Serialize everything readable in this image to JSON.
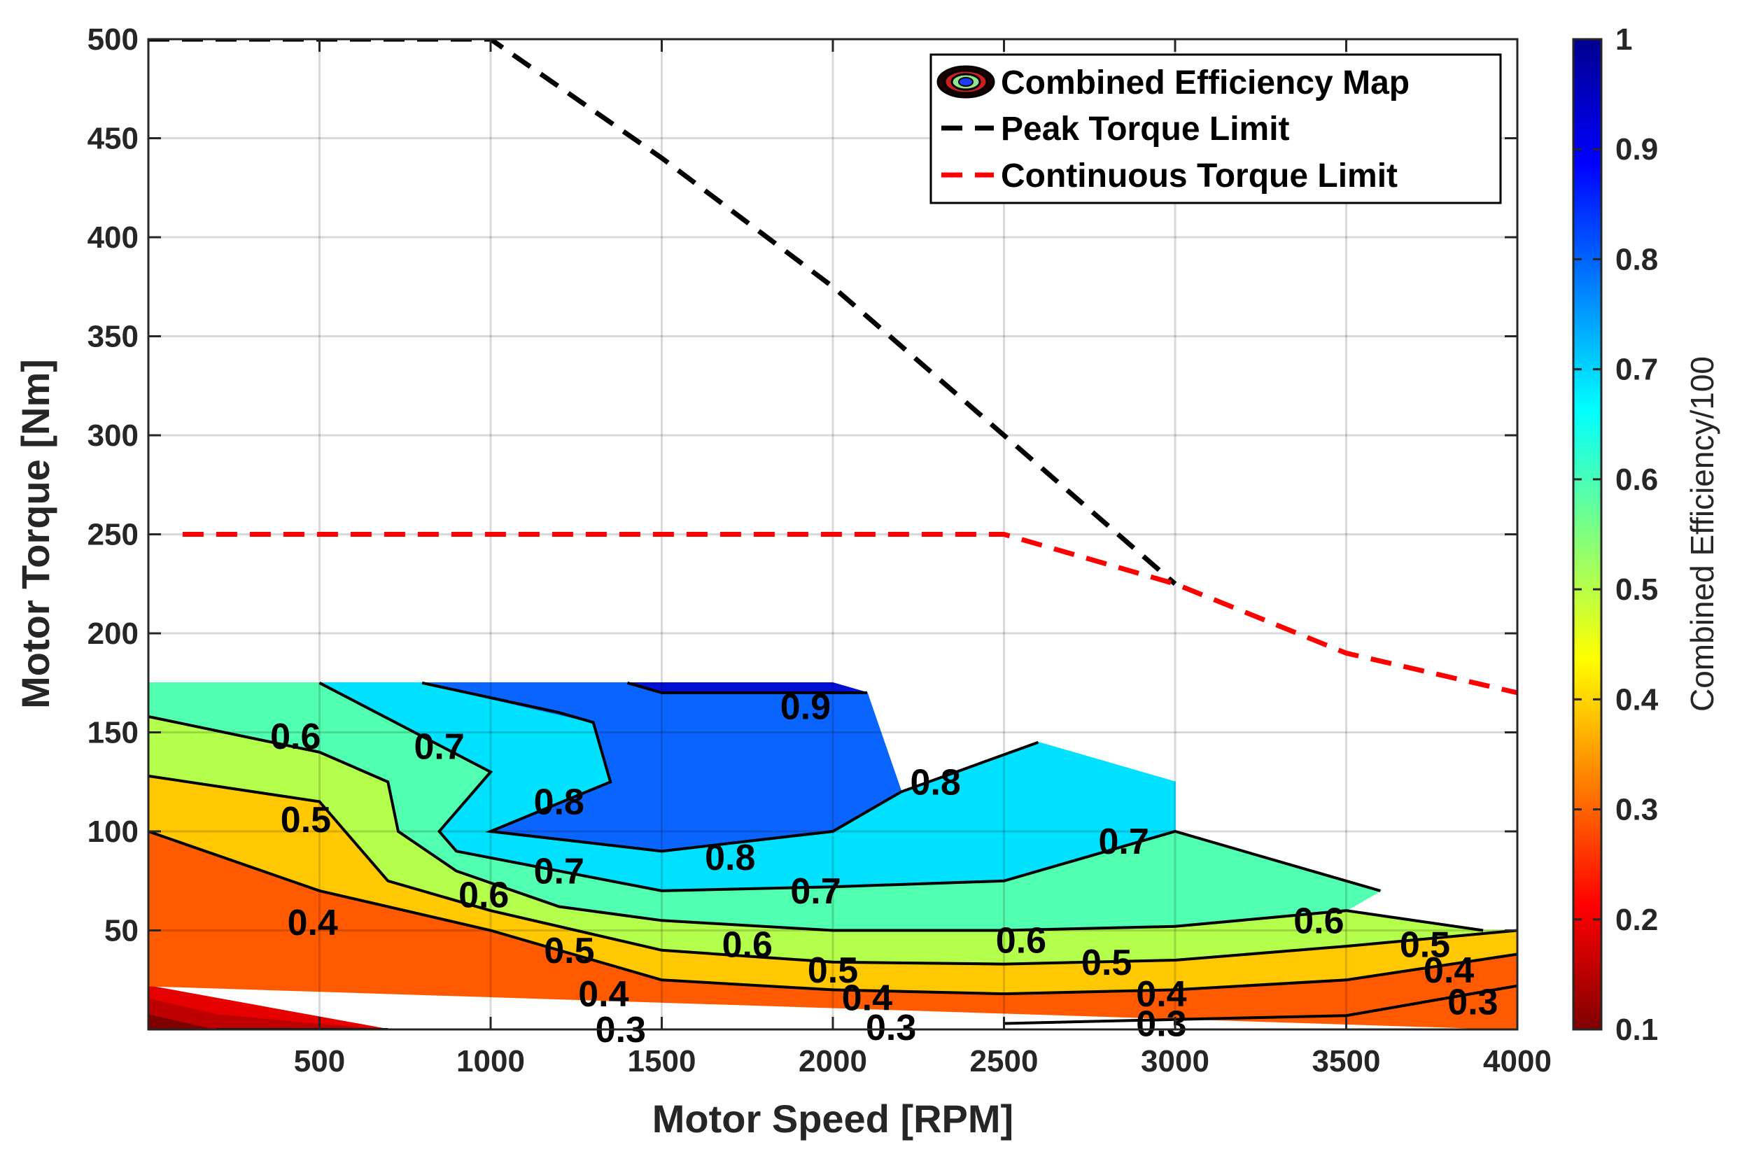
{
  "chart_data": {
    "type": "contour",
    "title": "",
    "xlabel": "Motor Speed [RPM]",
    "ylabel": "Motor Torque [Nm]",
    "xlim": [
      0,
      4000
    ],
    "ylim": [
      0,
      500
    ],
    "x_ticks": [
      500,
      1000,
      1500,
      2000,
      2500,
      3000,
      3500,
      4000
    ],
    "y_ticks": [
      50,
      100,
      150,
      200,
      250,
      300,
      350,
      400,
      450,
      500
    ],
    "grid": true,
    "colorbar": {
      "label": "Combined Efficiency/100",
      "range": [
        0.1,
        1
      ],
      "ticks": [
        0.1,
        0.2,
        0.3,
        0.4,
        0.5,
        0.6,
        0.7,
        0.8,
        0.9,
        1
      ]
    },
    "legend": {
      "placement": "top-right",
      "entries": [
        "Combined Efficiency Map",
        "Peak Torque Limit",
        "Continuous Torque Limit"
      ]
    },
    "series": [
      {
        "name": "Peak Torque Limit",
        "style": "dashed",
        "color": "#000000",
        "points": [
          [
            0,
            500
          ],
          [
            1000,
            500
          ],
          [
            1500,
            440
          ],
          [
            2000,
            375
          ],
          [
            2500,
            300
          ],
          [
            3000,
            225
          ]
        ]
      },
      {
        "name": "Continuous Torque Limit",
        "style": "dashed",
        "color": "#ff0000",
        "points": [
          [
            100,
            250
          ],
          [
            2500,
            250
          ],
          [
            3000,
            225
          ],
          [
            3500,
            190
          ],
          [
            4000,
            170
          ]
        ]
      }
    ],
    "efficiency_map": {
      "boundary": [
        [
          0,
          0
        ],
        [
          0,
          175
        ],
        [
          2000,
          175
        ],
        [
          2600,
          145
        ],
        [
          3000,
          125
        ],
        [
          3000,
          100
        ],
        [
          4000,
          50
        ],
        [
          4000,
          0
        ]
      ],
      "regions": [
        {
          "level": 0.1,
          "color": "#800000",
          "polygon": [
            [
              0,
              0
            ],
            [
              0,
              8
            ],
            [
              200,
              0
            ]
          ]
        },
        {
          "level": 0.2,
          "color": "#bf0000",
          "polygon": [
            [
              0,
              8
            ],
            [
              0,
              16
            ],
            [
              200,
              8
            ],
            [
              700,
              0
            ],
            [
              200,
              0
            ]
          ]
        },
        {
          "level": 0.25,
          "color": "#e60000",
          "polygon": [
            [
              0,
              16
            ],
            [
              0,
              22
            ],
            [
              700,
              0
            ],
            [
              200,
              8
            ]
          ]
        },
        {
          "level": 0.3,
          "color": "#ff5a00",
          "polygon": [
            [
              0,
              22
            ],
            [
              0,
              100
            ],
            [
              500,
              70
            ],
            [
              1000,
              50
            ],
            [
              1500,
              25
            ],
            [
              2000,
              20
            ],
            [
              2500,
              18
            ],
            [
              3000,
              20
            ],
            [
              3500,
              25
            ],
            [
              4000,
              38
            ],
            [
              4000,
              0
            ]
          ]
        },
        {
          "level": 0.4,
          "color": "#ffc800",
          "polygon": [
            [
              0,
              100
            ],
            [
              0,
              128
            ],
            [
              500,
              115
            ],
            [
              700,
              75
            ],
            [
              1000,
              60
            ],
            [
              1500,
              40
            ],
            [
              2000,
              34
            ],
            [
              2500,
              33
            ],
            [
              3000,
              35
            ],
            [
              3500,
              42
            ],
            [
              4000,
              50
            ],
            [
              4000,
              38
            ],
            [
              3500,
              25
            ],
            [
              3000,
              20
            ],
            [
              2500,
              18
            ],
            [
              2000,
              20
            ],
            [
              1500,
              25
            ],
            [
              1000,
              50
            ],
            [
              500,
              70
            ]
          ]
        },
        {
          "level": 0.5,
          "color": "#b4ff4b",
          "polygon": [
            [
              0,
              128
            ],
            [
              0,
              158
            ],
            [
              500,
              140
            ],
            [
              700,
              125
            ],
            [
              730,
              100
            ],
            [
              900,
              80
            ],
            [
              1200,
              62
            ],
            [
              1500,
              55
            ],
            [
              2000,
              50
            ],
            [
              2500,
              50
            ],
            [
              3000,
              52
            ],
            [
              3500,
              60
            ],
            [
              3900,
              50
            ],
            [
              4000,
              50
            ],
            [
              3500,
              42
            ],
            [
              3000,
              35
            ],
            [
              2500,
              33
            ],
            [
              2000,
              34
            ],
            [
              1500,
              40
            ],
            [
              1000,
              60
            ],
            [
              700,
              75
            ],
            [
              500,
              115
            ]
          ]
        },
        {
          "level": 0.6,
          "color": "#50ffb0",
          "polygon": [
            [
              0,
              158
            ],
            [
              0,
              175
            ],
            [
              500,
              175
            ],
            [
              1000,
              130
            ],
            [
              850,
              100
            ],
            [
              900,
              90
            ],
            [
              1500,
              70
            ],
            [
              2000,
              72
            ],
            [
              2500,
              75
            ],
            [
              3000,
              100
            ],
            [
              3000,
              125
            ],
            [
              3000,
              100
            ],
            [
              3500,
              75
            ],
            [
              3600,
              70
            ],
            [
              3500,
              60
            ],
            [
              3000,
              52
            ],
            [
              2500,
              50
            ],
            [
              2000,
              50
            ],
            [
              1500,
              55
            ],
            [
              1200,
              62
            ],
            [
              900,
              80
            ],
            [
              730,
              100
            ],
            [
              700,
              125
            ],
            [
              500,
              140
            ]
          ]
        },
        {
          "level": 0.7,
          "color": "#00e1ff",
          "polygon": [
            [
              500,
              175
            ],
            [
              800,
              175
            ],
            [
              1300,
              155
            ],
            [
              1350,
              125
            ],
            [
              1000,
              100
            ],
            [
              1500,
              90
            ],
            [
              2000,
              100
            ],
            [
              2200,
              120
            ],
            [
              2600,
              145
            ],
            [
              3000,
              125
            ],
            [
              3000,
              100
            ],
            [
              2500,
              75
            ],
            [
              2000,
              72
            ],
            [
              1500,
              70
            ],
            [
              900,
              90
            ],
            [
              850,
              100
            ],
            [
              1000,
              130
            ]
          ]
        },
        {
          "level": 0.8,
          "color": "#0a64ff",
          "polygon": [
            [
              800,
              175
            ],
            [
              1400,
              175
            ],
            [
              1500,
              170
            ],
            [
              2100,
              170
            ],
            [
              2200,
              120
            ],
            [
              2000,
              100
            ],
            [
              1500,
              90
            ],
            [
              1000,
              100
            ],
            [
              1350,
              125
            ],
            [
              1300,
              155
            ]
          ]
        },
        {
          "level": 0.9,
          "color": "#000fd2",
          "polygon": [
            [
              1400,
              175
            ],
            [
              2000,
              175
            ],
            [
              2100,
              170
            ],
            [
              1500,
              170
            ]
          ]
        }
      ],
      "contours": [
        {
          "level": 0.3,
          "points": [
            [
              200,
              0
            ],
            [
              700,
              0
            ]
          ]
        },
        {
          "level": 0.3,
          "points": [
            [
              2500,
              3
            ],
            [
              3000,
              5
            ],
            [
              3500,
              7
            ],
            [
              4000,
              22
            ]
          ]
        },
        {
          "level": 0.4,
          "points": [
            [
              0,
              100
            ],
            [
              500,
              70
            ],
            [
              1000,
              50
            ],
            [
              1500,
              25
            ],
            [
              2000,
              20
            ],
            [
              2500,
              18
            ],
            [
              3000,
              20
            ],
            [
              3500,
              25
            ],
            [
              4000,
              38
            ]
          ]
        },
        {
          "level": 0.5,
          "points": [
            [
              0,
              128
            ],
            [
              500,
              115
            ],
            [
              700,
              75
            ],
            [
              1000,
              60
            ],
            [
              1500,
              40
            ],
            [
              2000,
              34
            ],
            [
              2500,
              33
            ],
            [
              3000,
              35
            ],
            [
              3500,
              42
            ],
            [
              4000,
              50
            ]
          ]
        },
        {
          "level": 0.6,
          "points": [
            [
              0,
              158
            ],
            [
              500,
              140
            ],
            [
              700,
              125
            ],
            [
              730,
              100
            ],
            [
              900,
              80
            ],
            [
              1200,
              62
            ],
            [
              1500,
              55
            ],
            [
              2000,
              50
            ],
            [
              2500,
              50
            ],
            [
              3000,
              52
            ],
            [
              3500,
              60
            ],
            [
              3900,
              50
            ]
          ]
        },
        {
          "level": 0.7,
          "points": [
            [
              500,
              175
            ],
            [
              1000,
              130
            ],
            [
              850,
              100
            ],
            [
              900,
              90
            ],
            [
              1500,
              70
            ],
            [
              2000,
              72
            ],
            [
              2500,
              75
            ],
            [
              3000,
              100
            ],
            [
              3500,
              75
            ],
            [
              3600,
              70
            ]
          ]
        },
        {
          "level": 0.8,
          "points": [
            [
              800,
              175
            ],
            [
              1200,
              160
            ],
            [
              1300,
              155
            ],
            [
              1350,
              125
            ],
            [
              1000,
              100
            ],
            [
              1500,
              90
            ],
            [
              2000,
              100
            ],
            [
              2200,
              120
            ],
            [
              2600,
              145
            ]
          ]
        },
        {
          "level": 0.9,
          "points": [
            [
              1400,
              175
            ],
            [
              1500,
              170
            ],
            [
              2100,
              170
            ]
          ]
        }
      ],
      "contour_labels": [
        {
          "text": "0.9",
          "x": 1920,
          "y": 163
        },
        {
          "text": "0.8",
          "x": 1200,
          "y": 115
        },
        {
          "text": "0.8",
          "x": 1700,
          "y": 87
        },
        {
          "text": "0.8",
          "x": 2300,
          "y": 125
        },
        {
          "text": "0.7",
          "x": 850,
          "y": 143
        },
        {
          "text": "0.7",
          "x": 1200,
          "y": 80
        },
        {
          "text": "0.7",
          "x": 1950,
          "y": 70
        },
        {
          "text": "0.7",
          "x": 2850,
          "y": 95
        },
        {
          "text": "0.6",
          "x": 430,
          "y": 148
        },
        {
          "text": "0.6",
          "x": 980,
          "y": 68
        },
        {
          "text": "0.6",
          "x": 1750,
          "y": 43
        },
        {
          "text": "0.6",
          "x": 2550,
          "y": 45
        },
        {
          "text": "0.6",
          "x": 3420,
          "y": 55
        },
        {
          "text": "0.5",
          "x": 460,
          "y": 106
        },
        {
          "text": "0.5",
          "x": 1230,
          "y": 40
        },
        {
          "text": "0.5",
          "x": 2000,
          "y": 30
        },
        {
          "text": "0.5",
          "x": 2800,
          "y": 34
        },
        {
          "text": "0.5",
          "x": 3730,
          "y": 43
        },
        {
          "text": "0.4",
          "x": 480,
          "y": 54
        },
        {
          "text": "0.4",
          "x": 1330,
          "y": 18
        },
        {
          "text": "0.4",
          "x": 2100,
          "y": 16
        },
        {
          "text": "0.4",
          "x": 2960,
          "y": 18
        },
        {
          "text": "0.4",
          "x": 3800,
          "y": 30
        },
        {
          "text": "0.3",
          "x": 1380,
          "y": 0
        },
        {
          "text": "0.3",
          "x": 2170,
          "y": 1
        },
        {
          "text": "0.3",
          "x": 2960,
          "y": 3
        },
        {
          "text": "0.3",
          "x": 3870,
          "y": 14
        }
      ]
    }
  }
}
